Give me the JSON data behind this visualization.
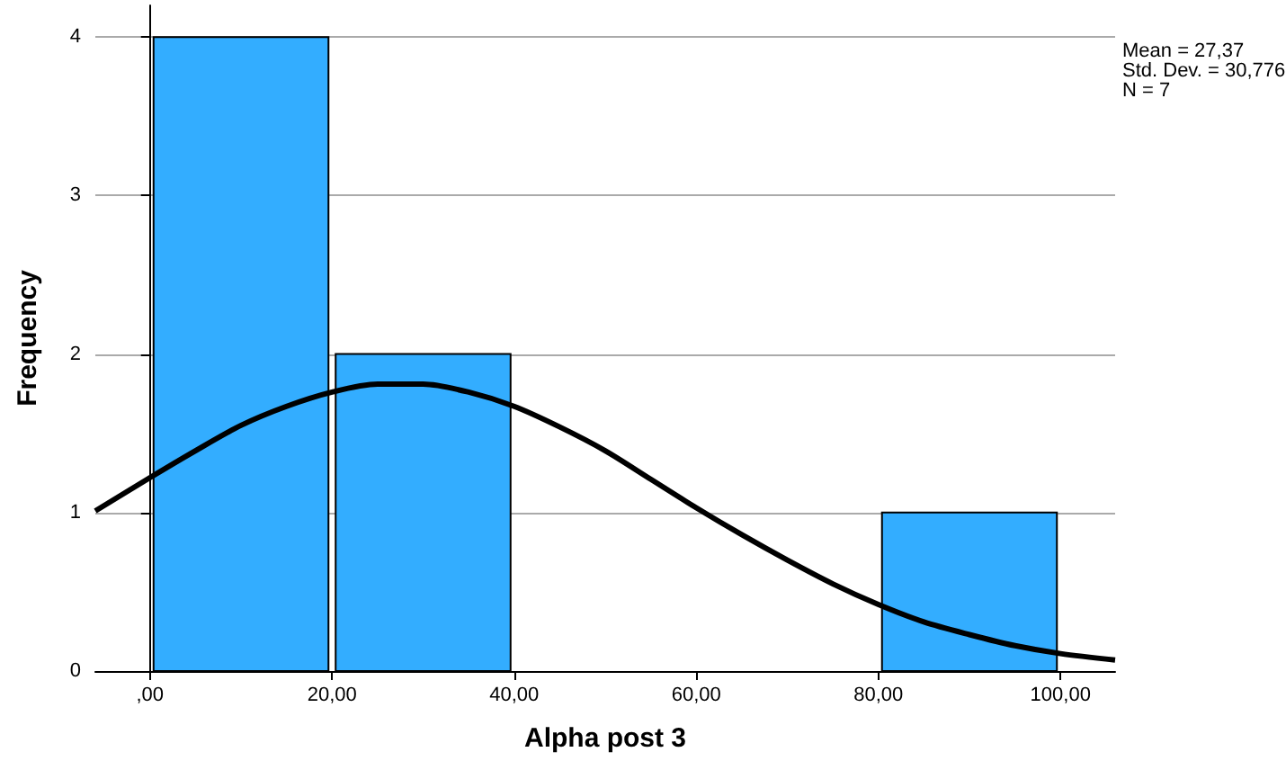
{
  "chart_data": {
    "type": "histogram",
    "xlabel": "Alpha post 3",
    "ylabel": "Frequency",
    "bins": [
      0,
      20,
      40,
      60,
      80,
      100
    ],
    "values": [
      4,
      2,
      0,
      0,
      1
    ],
    "color": "#33adff",
    "xlim": [
      -6,
      106
    ],
    "xticks": [
      {
        "value": 0,
        "label": ",00"
      },
      {
        "value": 20,
        "label": "20,00"
      },
      {
        "value": 40,
        "label": "40,00"
      },
      {
        "value": 60,
        "label": "60,00"
      },
      {
        "value": 80,
        "label": "80,00"
      },
      {
        "value": 100,
        "label": "100,00"
      }
    ],
    "ylim": [
      0,
      4.2
    ],
    "yticks": [
      0,
      1,
      2,
      3,
      4
    ],
    "grid": "y",
    "legend": false,
    "series": [
      {
        "type": "line",
        "color": "#000000",
        "x": [
          -6,
          0,
          5,
          10,
          15,
          20,
          25,
          30,
          35,
          40,
          45,
          50,
          55,
          60,
          65,
          70,
          75,
          80,
          85,
          90,
          95,
          100,
          106
        ],
        "values": [
          1.01,
          1.22,
          1.39,
          1.55,
          1.67,
          1.76,
          1.81,
          1.81,
          1.76,
          1.67,
          1.54,
          1.39,
          1.21,
          1.03,
          0.86,
          0.7,
          0.55,
          0.42,
          0.31,
          0.23,
          0.16,
          0.11,
          0.07
        ]
      }
    ],
    "annotations": [
      "Mean = 27,37",
      "Std. Dev. = 30,776",
      "N = 7"
    ]
  }
}
